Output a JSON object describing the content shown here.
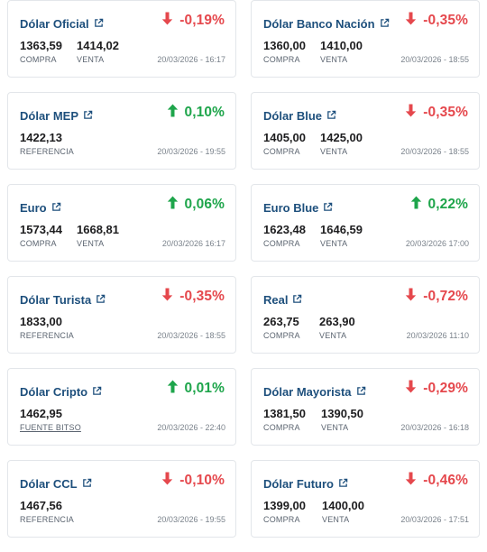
{
  "cards": [
    {
      "title": "Dólar Oficial",
      "change": "-0,19%",
      "dir": "down",
      "v1": "1363,59",
      "l1": "COMPRA",
      "v2": "1414,02",
      "l2": "VENTA",
      "time": "20/03/2026 - 16:17"
    },
    {
      "title": "Dólar Banco Nación",
      "change": "-0,35%",
      "dir": "down",
      "v1": "1360,00",
      "l1": "COMPRA",
      "v2": "1410,00",
      "l2": "VENTA",
      "time": "20/03/2026 - 18:55"
    },
    {
      "title": "Dólar MEP",
      "change": "0,10%",
      "dir": "up",
      "v1": "1422,13",
      "l1": "REFERENCIA",
      "time": "20/03/2026 - 19:55"
    },
    {
      "title": "Dólar Blue",
      "change": "-0,35%",
      "dir": "down",
      "v1": "1405,00",
      "l1": "COMPRA",
      "v2": "1425,00",
      "l2": "VENTA",
      "time": "20/03/2026 - 18:55"
    },
    {
      "title": "Euro",
      "change": "0,06%",
      "dir": "up",
      "v1": "1573,44",
      "l1": "COMPRA",
      "v2": "1668,81",
      "l2": "VENTA",
      "time": "20/03/2026 16:17"
    },
    {
      "title": "Euro Blue",
      "change": "0,22%",
      "dir": "up",
      "v1": "1623,48",
      "l1": "COMPRA",
      "v2": "1646,59",
      "l2": "VENTA",
      "time": "20/03/2026 17:00"
    },
    {
      "title": "Dólar Turista",
      "change": "-0,35%",
      "dir": "down",
      "v1": "1833,00",
      "l1": "REFERENCIA",
      "time": "20/03/2026 - 18:55"
    },
    {
      "title": "Real",
      "change": "-0,72%",
      "dir": "down",
      "v1": "263,75",
      "l1": "COMPRA",
      "v2": "263,90",
      "l2": "VENTA",
      "time": "20/03/2026 11:10"
    },
    {
      "title": "Dólar Cripto",
      "change": "0,01%",
      "dir": "up",
      "v1": "1462,95",
      "l1": "FUENTE BITSO",
      "l1_link": true,
      "time": "20/03/2026 - 22:40"
    },
    {
      "title": "Dólar Mayorista",
      "change": "-0,29%",
      "dir": "down",
      "v1": "1381,50",
      "l1": "COMPRA",
      "v2": "1390,50",
      "l2": "VENTA",
      "time": "20/03/2026 - 16:18"
    },
    {
      "title": "Dólar CCL",
      "change": "-0,10%",
      "dir": "down",
      "v1": "1467,56",
      "l1": "REFERENCIA",
      "time": "20/03/2026 - 19:55"
    },
    {
      "title": "Dólar Futuro",
      "change": "-0,46%",
      "dir": "down",
      "v1": "1399,00",
      "l1": "COMPRA",
      "v2": "1400,00",
      "l2": "VENTA",
      "time": "20/03/2026 - 17:51"
    }
  ],
  "colors": {
    "title": "#1d4f7c",
    "down": "#e5484d",
    "up": "#1ea54b"
  },
  "icons": {
    "link": "external-link-icon",
    "up": "arrow-up-icon",
    "down": "arrow-down-icon"
  }
}
